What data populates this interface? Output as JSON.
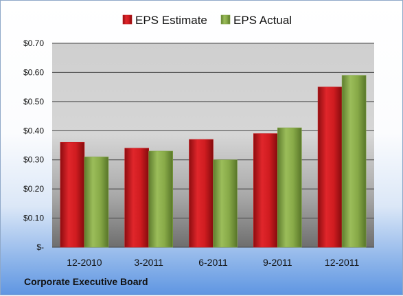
{
  "footer_label": "Corporate Executive Board",
  "colors": {
    "estimate": "#c8181c",
    "actual": "#84a745"
  },
  "chart_data": {
    "type": "bar",
    "title": "",
    "xlabel": "",
    "ylabel": "",
    "categories": [
      "12-2010",
      "3-2011",
      "6-2011",
      "9-2011",
      "12-2011"
    ],
    "series": [
      {
        "name": "EPS Estimate",
        "values": [
          0.36,
          0.34,
          0.37,
          0.39,
          0.55
        ]
      },
      {
        "name": "EPS Actual",
        "values": [
          0.31,
          0.33,
          0.3,
          0.41,
          0.59
        ]
      }
    ],
    "ylim": [
      0,
      0.7
    ],
    "yticks": [
      {
        "value": 0,
        "label": "$-"
      },
      {
        "value": 0.1,
        "label": "$0.10"
      },
      {
        "value": 0.2,
        "label": "$0.20"
      },
      {
        "value": 0.3,
        "label": "$0.30"
      },
      {
        "value": 0.4,
        "label": "$0.40"
      },
      {
        "value": 0.5,
        "label": "$0.50"
      },
      {
        "value": 0.6,
        "label": "$0.60"
      },
      {
        "value": 0.7,
        "label": "$0.70"
      }
    ],
    "grid": true,
    "legend": "top"
  }
}
